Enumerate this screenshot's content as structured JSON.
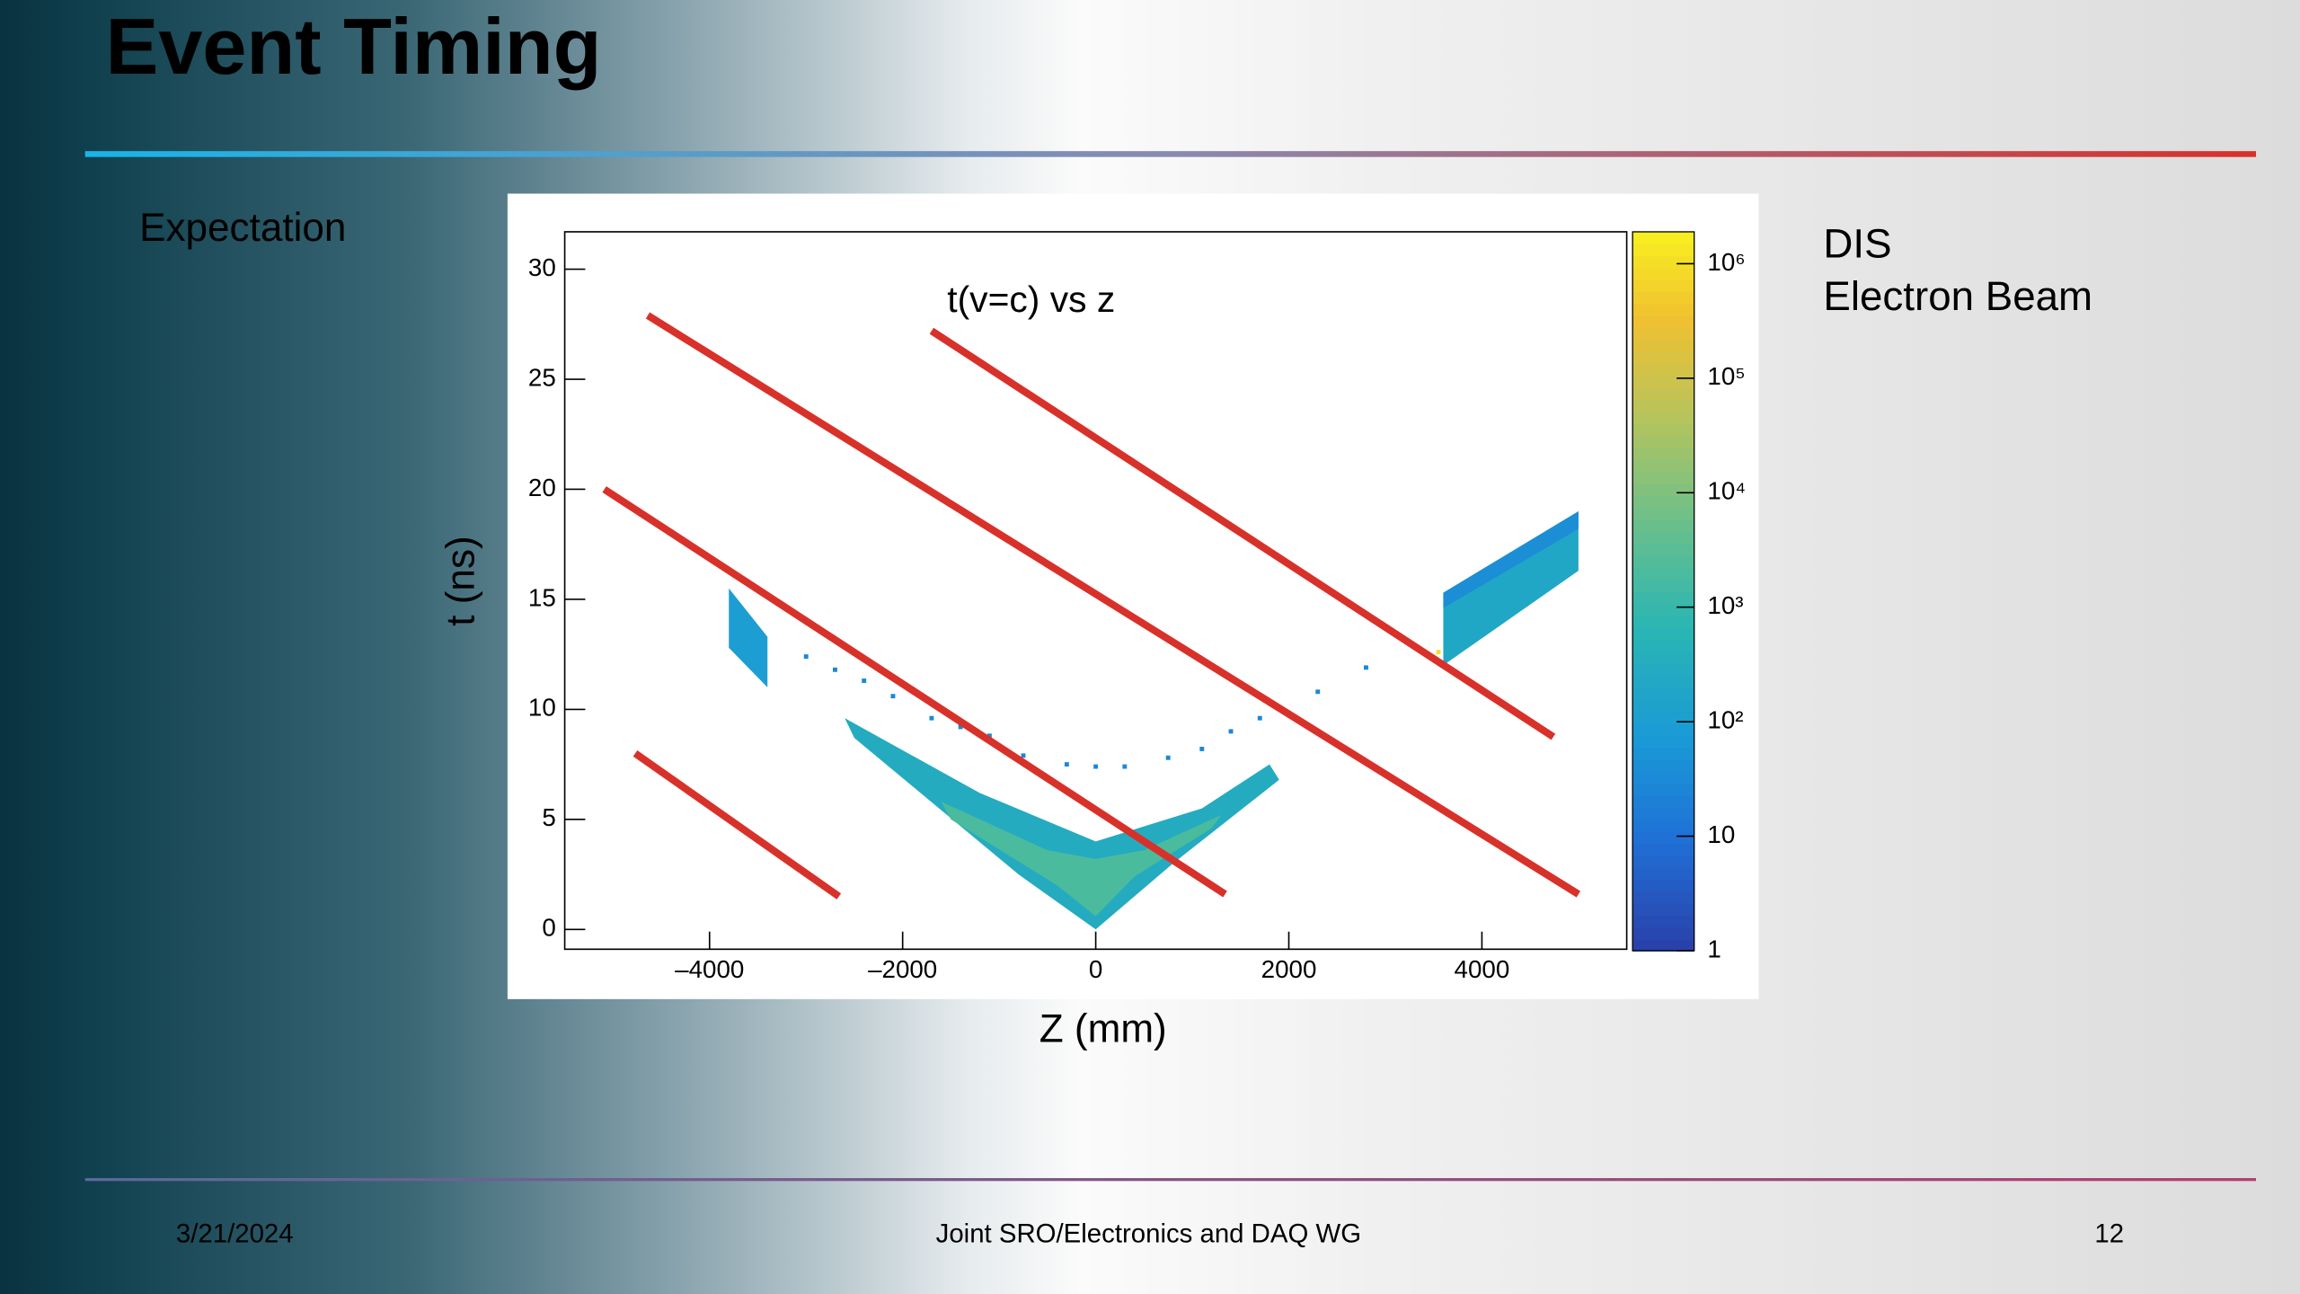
{
  "header": {
    "title": "Event Timing"
  },
  "body": {
    "label": "Expectation"
  },
  "legend": {
    "items": [
      {
        "text": "DIS",
        "color": "#000000"
      },
      {
        "text": "Electron Beam",
        "color": "#e8201a"
      }
    ]
  },
  "footer": {
    "date": "3/21/2024",
    "center": "Joint SRO/Electronics and DAQ WG",
    "page": "12"
  },
  "chart_data": {
    "type": "heatmap",
    "annotation": "t(v=c) vs z",
    "x_label": "Z (mm)",
    "y_label": "t (ns)",
    "xlim": [
      -5500,
      5500
    ],
    "ylim": [
      -0.9,
      31.7
    ],
    "xticks": [
      {
        "value": -4000,
        "label": "–4000"
      },
      {
        "value": -2000,
        "label": "–2000"
      },
      0,
      2000,
      4000
    ],
    "yticks": [
      0,
      5,
      10,
      15,
      20,
      25,
      30
    ],
    "zscale": "log",
    "zlim": [
      1,
      1900000
    ],
    "zticks": [
      1,
      10,
      {
        "value": 100,
        "label": "10²"
      },
      {
        "value": 1000,
        "label": "10³"
      },
      {
        "value": 10000,
        "label": "10⁴"
      },
      {
        "value": 100000,
        "label": "10⁵"
      },
      {
        "value": 1000000,
        "label": "10⁶"
      }
    ],
    "regions": [
      {
        "x": [
          -2600,
          -1200,
          0,
          1100,
          1800,
          1900,
          800,
          0,
          -800,
          -2500
        ],
        "y": [
          9.6,
          6.2,
          4,
          5.5,
          7.5,
          6.8,
          3,
          0,
          2.5,
          8.7
        ],
        "value": 300
      },
      {
        "x": [
          -1600,
          -500,
          0,
          500,
          1300,
          1200,
          400,
          0,
          -400,
          -1500
        ],
        "y": [
          5.8,
          3.6,
          3.2,
          3.6,
          5.2,
          4.6,
          2.4,
          0.6,
          2,
          5
        ],
        "value": 2000
      },
      {
        "x": [
          -3800,
          -3400,
          -3400,
          -3800
        ],
        "y": [
          15.5,
          13.3,
          11,
          12.8
        ],
        "value": 100
      },
      {
        "x": [
          3600,
          5000,
          5000,
          3600
        ],
        "y": [
          15.3,
          19,
          16.3,
          12
        ],
        "value": 200
      },
      {
        "x": [
          3600,
          5000,
          5000,
          3600
        ],
        "y": [
          15.3,
          19,
          18.2,
          14.6
        ],
        "value": 40
      }
    ],
    "points": {
      "x": [
        -3000,
        -2700,
        -2400,
        -2100,
        -1700,
        -1400,
        -1100,
        -750,
        -300,
        0,
        300,
        750,
        1100,
        1400,
        1700,
        2300,
        2800,
        3550
      ],
      "y": [
        12.4,
        11.8,
        11.3,
        10.6,
        9.6,
        9.2,
        8.8,
        7.9,
        7.5,
        7.4,
        7.4,
        7.8,
        8.2,
        9,
        9.6,
        10.8,
        11.9,
        12.6
      ],
      "values": [
        30,
        30,
        30,
        30,
        30,
        30,
        30,
        30,
        30,
        30,
        30,
        30,
        30,
        30,
        30,
        30,
        30,
        1000000
      ]
    },
    "lines": [
      {
        "x": [
          -4640,
          5000
        ],
        "y": [
          27.9,
          1.6
        ]
      },
      {
        "x": [
          -1700,
          4740
        ],
        "y": [
          27.2,
          8.75
        ]
      },
      {
        "x": [
          -5090,
          1340
        ],
        "y": [
          20.0,
          1.6
        ]
      },
      {
        "x": [
          -4770,
          -2660
        ],
        "y": [
          8.0,
          1.5
        ]
      }
    ],
    "line_color": "#d8312a"
  }
}
